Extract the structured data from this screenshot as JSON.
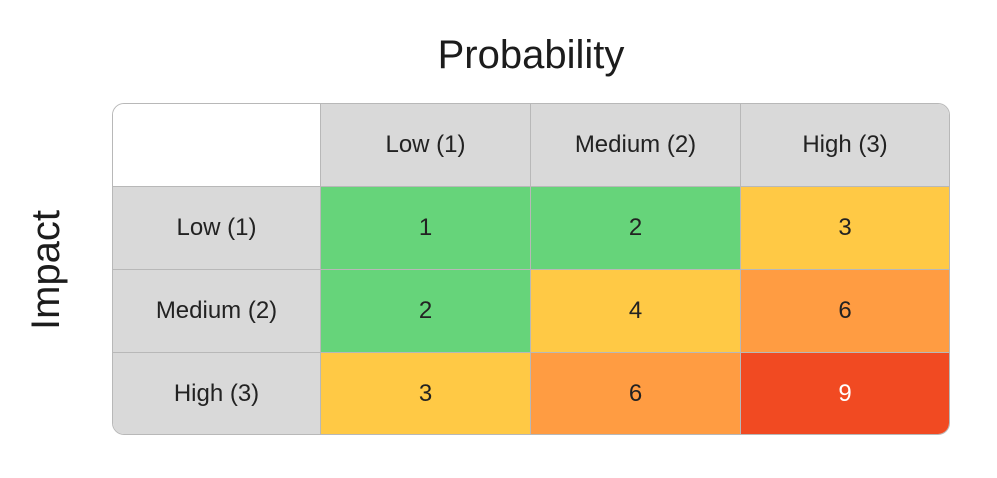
{
  "title": "Probability",
  "side_title": "Impact",
  "colors": {
    "header": "#d9d9d9",
    "low": "#66d47a",
    "medium": "#ffc945",
    "high": "#ff9c42",
    "critical": "#f14a22"
  },
  "columns": [
    "Low (1)",
    "Medium (2)",
    "High (3)"
  ],
  "rows": [
    {
      "label": "Low (1)",
      "cells": [
        {
          "value": "1",
          "color": "#66d47a"
        },
        {
          "value": "2",
          "color": "#66d47a"
        },
        {
          "value": "3",
          "color": "#ffc945"
        }
      ]
    },
    {
      "label": "Medium (2)",
      "cells": [
        {
          "value": "2",
          "color": "#66d47a"
        },
        {
          "value": "4",
          "color": "#ffc945"
        },
        {
          "value": "6",
          "color": "#ff9c42"
        }
      ]
    },
    {
      "label": "High (3)",
      "cells": [
        {
          "value": "3",
          "color": "#ffc945"
        },
        {
          "value": "6",
          "color": "#ff9c42"
        },
        {
          "value": "9",
          "color": "#f14a22",
          "text_color": "#ffffff"
        }
      ]
    }
  ]
}
